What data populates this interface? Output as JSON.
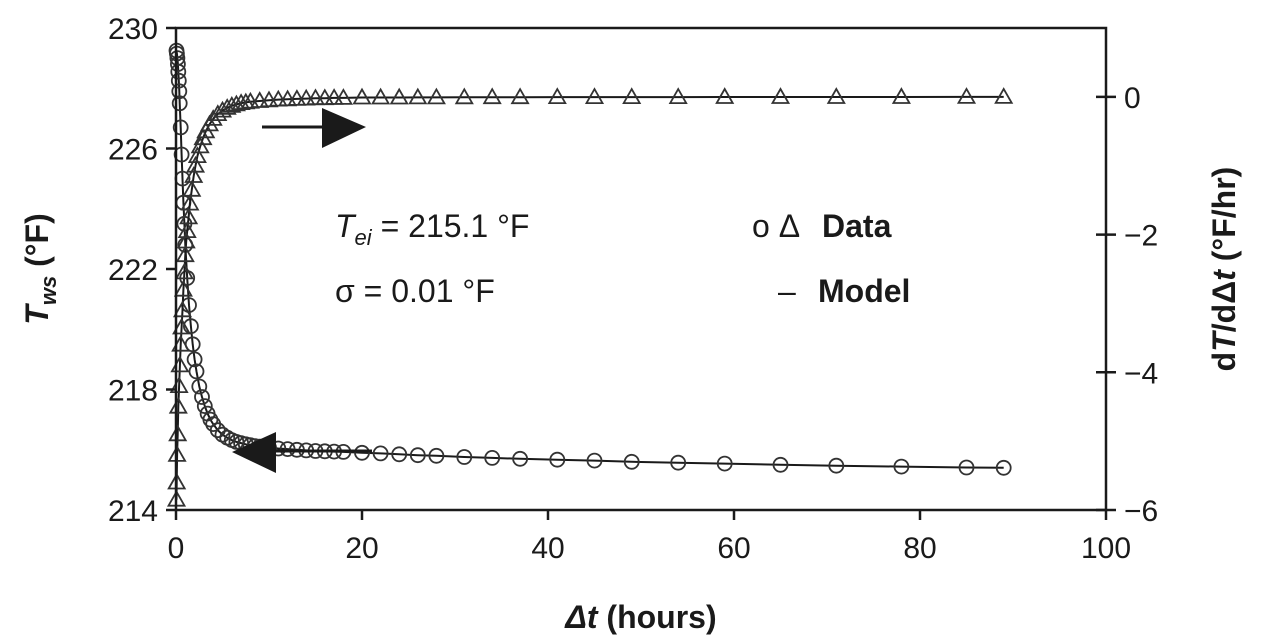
{
  "chart_data": {
    "type": "scatter",
    "x_axis": {
      "label_symbol": "Δt",
      "label_unit": " (hours)",
      "range": [
        0,
        100
      ],
      "ticks": [
        "0",
        "20",
        "40",
        "60",
        "80",
        "100"
      ]
    },
    "y_left": {
      "label_symbol": "T",
      "label_sub": "ws",
      "label_unit": " (°F)",
      "range": [
        214,
        230
      ],
      "ticks": [
        "214",
        "218",
        "222",
        "226",
        "230"
      ]
    },
    "y_right": {
      "label_prefix": "d",
      "label_symbol": "T",
      "label_mid": "/dΔ",
      "label_symbol2": "t",
      "label_unit": " (°F/hr)",
      "range": [
        -6,
        1
      ],
      "ticks": [
        "−6",
        "−4",
        "−2",
        "0"
      ]
    },
    "annotations": {
      "tei_symbol": "T",
      "tei_sub": "ei",
      "tei_value": " = 215.1 °F",
      "sigma": "σ = 0.01 °F",
      "legend_markers": "o Δ",
      "legend_data": "Data",
      "legend_model_marker": "–",
      "legend_model": "Model"
    },
    "grid": false,
    "series": [
      {
        "axis": "left",
        "marker": "circle",
        "x": [
          0.05,
          0.1,
          0.15,
          0.2,
          0.25,
          0.3,
          0.35,
          0.4,
          0.5,
          0.6,
          0.7,
          0.8,
          0.9,
          1.0,
          1.2,
          1.4,
          1.6,
          1.8,
          2.0,
          2.2,
          2.5,
          2.8,
          3.1,
          3.4,
          3.7,
          4.0,
          4.5,
          5.0,
          5.5,
          6.0,
          6.5,
          7.0,
          7.5,
          8.0,
          8.5,
          9.0,
          10,
          11,
          12,
          13,
          14,
          15,
          16,
          17,
          18,
          20,
          22,
          24,
          26,
          28,
          31,
          34,
          37,
          41,
          45,
          49,
          54,
          59,
          65,
          71,
          78,
          85,
          89
        ],
        "y": [
          229.25,
          229.15,
          229.0,
          228.8,
          228.55,
          228.25,
          227.9,
          227.5,
          226.7,
          225.8,
          225.0,
          224.2,
          223.5,
          222.8,
          221.7,
          220.8,
          220.1,
          219.5,
          219.0,
          218.6,
          218.1,
          217.75,
          217.45,
          217.2,
          217.0,
          216.85,
          216.65,
          216.5,
          216.4,
          216.32,
          216.26,
          216.22,
          216.18,
          216.15,
          216.12,
          216.1,
          216.07,
          216.04,
          216.02,
          216.0,
          215.98,
          215.96,
          215.95,
          215.94,
          215.93,
          215.9,
          215.88,
          215.85,
          215.82,
          215.8,
          215.76,
          215.73,
          215.7,
          215.67,
          215.64,
          215.6,
          215.57,
          215.54,
          215.5,
          215.47,
          215.44,
          215.41,
          215.4
        ]
      },
      {
        "axis": "right",
        "marker": "triangle",
        "x": [
          0.05,
          0.08,
          0.12,
          0.18,
          0.25,
          0.33,
          0.42,
          0.5,
          0.6,
          0.7,
          0.8,
          0.9,
          1.0,
          1.1,
          1.2,
          1.35,
          1.5,
          1.7,
          1.9,
          2.1,
          2.3,
          2.6,
          2.9,
          3.2,
          3.6,
          4.0,
          4.5,
          5.0,
          5.5,
          6.0,
          6.5,
          7.0,
          7.5,
          8.0,
          9.0,
          10,
          11,
          12,
          13,
          14,
          15,
          16,
          17,
          18,
          20,
          22,
          24,
          26,
          28,
          31,
          34,
          37,
          41,
          45,
          49,
          54,
          59,
          65,
          71,
          78,
          85,
          89
        ],
        "y": [
          -5.85,
          -5.6,
          -5.2,
          -4.9,
          -4.5,
          -4.2,
          -3.9,
          -3.6,
          -3.35,
          -3.1,
          -2.8,
          -2.55,
          -2.3,
          -2.1,
          -1.95,
          -1.75,
          -1.55,
          -1.35,
          -1.15,
          -1.0,
          -0.86,
          -0.72,
          -0.6,
          -0.5,
          -0.4,
          -0.32,
          -0.25,
          -0.2,
          -0.16,
          -0.13,
          -0.11,
          -0.09,
          -0.08,
          -0.07,
          -0.06,
          -0.05,
          -0.04,
          -0.035,
          -0.03,
          -0.025,
          -0.02,
          -0.02,
          -0.015,
          -0.015,
          -0.01,
          -0.01,
          -0.01,
          -0.008,
          -0.008,
          -0.006,
          -0.005,
          -0.005,
          -0.004,
          -0.004,
          -0.003,
          -0.003,
          -0.002,
          -0.002,
          -0.002,
          -0.002,
          -0.001,
          -0.001
        ]
      }
    ]
  }
}
